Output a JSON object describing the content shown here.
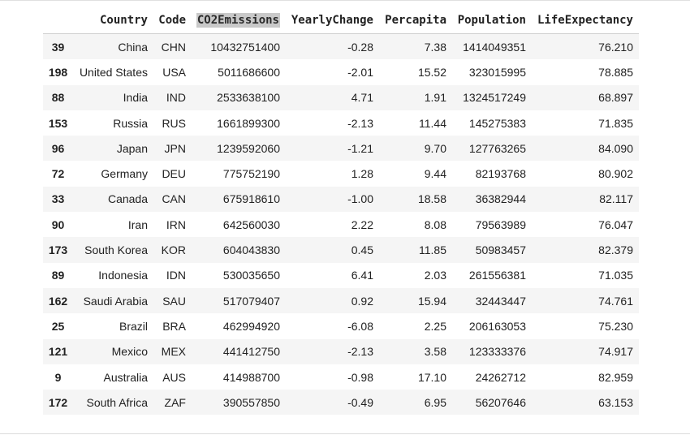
{
  "table": {
    "columns": [
      "Country",
      "Code",
      "CO2Emissions",
      "YearlyChange",
      "Percapita",
      "Population",
      "LifeExpectancy"
    ],
    "highlighted_column": "CO2Emissions",
    "rows": [
      {
        "index": "39",
        "Country": "China",
        "Code": "CHN",
        "CO2Emissions": "10432751400",
        "YearlyChange": "-0.28",
        "Percapita": "7.38",
        "Population": "1414049351",
        "LifeExpectancy": "76.210"
      },
      {
        "index": "198",
        "Country": "United States",
        "Code": "USA",
        "CO2Emissions": "5011686600",
        "YearlyChange": "-2.01",
        "Percapita": "15.52",
        "Population": "323015995",
        "LifeExpectancy": "78.885"
      },
      {
        "index": "88",
        "Country": "India",
        "Code": "IND",
        "CO2Emissions": "2533638100",
        "YearlyChange": "4.71",
        "Percapita": "1.91",
        "Population": "1324517249",
        "LifeExpectancy": "68.897"
      },
      {
        "index": "153",
        "Country": "Russia",
        "Code": "RUS",
        "CO2Emissions": "1661899300",
        "YearlyChange": "-2.13",
        "Percapita": "11.44",
        "Population": "145275383",
        "LifeExpectancy": "71.835"
      },
      {
        "index": "96",
        "Country": "Japan",
        "Code": "JPN",
        "CO2Emissions": "1239592060",
        "YearlyChange": "-1.21",
        "Percapita": "9.70",
        "Population": "127763265",
        "LifeExpectancy": "84.090"
      },
      {
        "index": "72",
        "Country": "Germany",
        "Code": "DEU",
        "CO2Emissions": "775752190",
        "YearlyChange": "1.28",
        "Percapita": "9.44",
        "Population": "82193768",
        "LifeExpectancy": "80.902"
      },
      {
        "index": "33",
        "Country": "Canada",
        "Code": "CAN",
        "CO2Emissions": "675918610",
        "YearlyChange": "-1.00",
        "Percapita": "18.58",
        "Population": "36382944",
        "LifeExpectancy": "82.117"
      },
      {
        "index": "90",
        "Country": "Iran",
        "Code": "IRN",
        "CO2Emissions": "642560030",
        "YearlyChange": "2.22",
        "Percapita": "8.08",
        "Population": "79563989",
        "LifeExpectancy": "76.047"
      },
      {
        "index": "173",
        "Country": "South Korea",
        "Code": "KOR",
        "CO2Emissions": "604043830",
        "YearlyChange": "0.45",
        "Percapita": "11.85",
        "Population": "50983457",
        "LifeExpectancy": "82.379"
      },
      {
        "index": "89",
        "Country": "Indonesia",
        "Code": "IDN",
        "CO2Emissions": "530035650",
        "YearlyChange": "6.41",
        "Percapita": "2.03",
        "Population": "261556381",
        "LifeExpectancy": "71.035"
      },
      {
        "index": "162",
        "Country": "Saudi Arabia",
        "Code": "SAU",
        "CO2Emissions": "517079407",
        "YearlyChange": "0.92",
        "Percapita": "15.94",
        "Population": "32443447",
        "LifeExpectancy": "74.761"
      },
      {
        "index": "25",
        "Country": "Brazil",
        "Code": "BRA",
        "CO2Emissions": "462994920",
        "YearlyChange": "-6.08",
        "Percapita": "2.25",
        "Population": "206163053",
        "LifeExpectancy": "75.230"
      },
      {
        "index": "121",
        "Country": "Mexico",
        "Code": "MEX",
        "CO2Emissions": "441412750",
        "YearlyChange": "-2.13",
        "Percapita": "3.58",
        "Population": "123333376",
        "LifeExpectancy": "74.917"
      },
      {
        "index": "9",
        "Country": "Australia",
        "Code": "AUS",
        "CO2Emissions": "414988700",
        "YearlyChange": "-0.98",
        "Percapita": "17.10",
        "Population": "24262712",
        "LifeExpectancy": "82.959"
      },
      {
        "index": "172",
        "Country": "South Africa",
        "Code": "ZAF",
        "CO2Emissions": "390557850",
        "YearlyChange": "-0.49",
        "Percapita": "6.95",
        "Population": "56207646",
        "LifeExpectancy": "63.153"
      }
    ]
  },
  "colors": {
    "stripe": "#f5f5f5",
    "header_highlight": "#c9c9c9"
  }
}
